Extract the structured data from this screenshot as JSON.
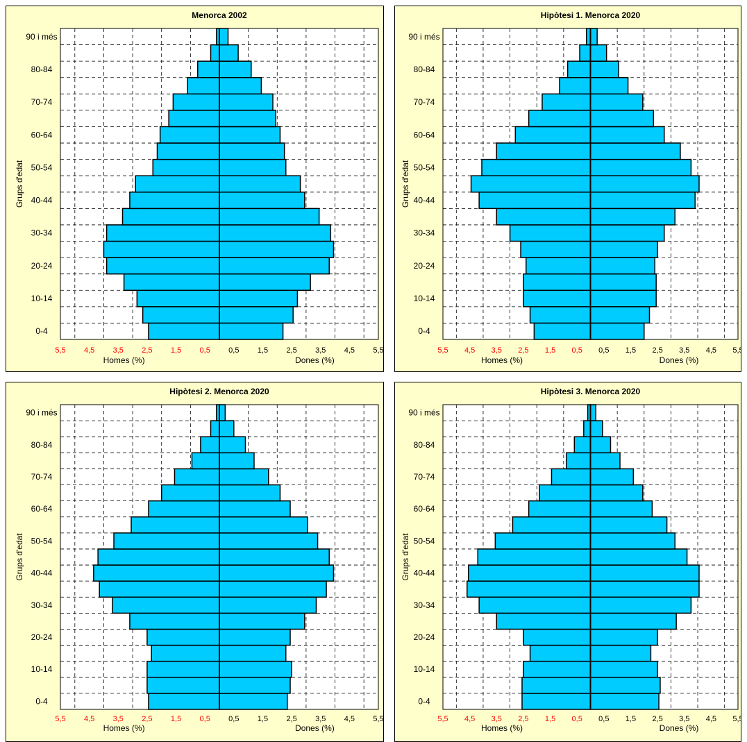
{
  "chart_data": [
    {
      "type": "bar",
      "title": "Menorca 2002",
      "categories": [
        "0-4",
        "5-9",
        "10-14",
        "15-19",
        "20-24",
        "25-29",
        "30-34",
        "35-39",
        "40-44",
        "45-49",
        "50-54",
        "55-59",
        "60-64",
        "65-69",
        "70-74",
        "75-79",
        "80-84",
        "85-89",
        "90 i més"
      ],
      "category_labels": [
        "0-4",
        "",
        "10-14",
        "",
        "20-24",
        "",
        "30-34",
        "",
        "40-44",
        "",
        "50-54",
        "",
        "60-64",
        "",
        "70-74",
        "",
        "80-84",
        "",
        "90 i més"
      ],
      "series": [
        {
          "name": "Homes (%)",
          "values": [
            2.45,
            2.65,
            2.85,
            3.3,
            3.9,
            4.0,
            3.9,
            3.35,
            3.1,
            2.9,
            2.3,
            2.15,
            2.05,
            1.75,
            1.6,
            1.1,
            0.75,
            0.3,
            0.1
          ]
        },
        {
          "name": "Dones (%)",
          "values": [
            2.2,
            2.55,
            2.7,
            3.15,
            3.8,
            3.95,
            3.85,
            3.45,
            2.95,
            2.8,
            2.3,
            2.25,
            2.1,
            1.95,
            1.85,
            1.45,
            1.1,
            0.65,
            0.3
          ]
        }
      ],
      "xlabel_left": "Homes (%)",
      "xlabel_right": "Dones (%)",
      "ylabel": "Grups d'edat",
      "ticks_left": [
        "5,5",
        "4,5",
        "3,5",
        "2,5",
        "1,5",
        "0,5"
      ],
      "ticks_right": [
        "0,5",
        "1,5",
        "2,5",
        "3,5",
        "4,5",
        "5,5"
      ],
      "xlim": [
        -5.5,
        5.5
      ],
      "grid": true,
      "bar_color": "#00ccff",
      "panel_color": "#ffffcc"
    },
    {
      "type": "bar",
      "title": "Hipòtesi 1. Menorca 2020",
      "categories": [
        "0-4",
        "5-9",
        "10-14",
        "15-19",
        "20-24",
        "25-29",
        "30-34",
        "35-39",
        "40-44",
        "45-49",
        "50-54",
        "55-59",
        "60-64",
        "65-69",
        "70-74",
        "75-79",
        "80-84",
        "85-89",
        "90 i més"
      ],
      "category_labels": [
        "0-4",
        "",
        "10-14",
        "",
        "20-24",
        "",
        "30-34",
        "",
        "40-44",
        "",
        "50-54",
        "",
        "60-64",
        "",
        "70-74",
        "",
        "80-84",
        "",
        "90 i més"
      ],
      "series": [
        {
          "name": "Homes (%)",
          "values": [
            2.1,
            2.25,
            2.5,
            2.5,
            2.4,
            2.6,
            3.0,
            3.5,
            4.15,
            4.45,
            4.05,
            3.5,
            2.8,
            2.3,
            1.8,
            1.15,
            0.85,
            0.4,
            0.15
          ]
        },
        {
          "name": "Dones (%)",
          "values": [
            2.0,
            2.2,
            2.45,
            2.45,
            2.4,
            2.5,
            2.75,
            3.15,
            3.9,
            4.05,
            3.75,
            3.35,
            2.75,
            2.35,
            1.95,
            1.4,
            1.05,
            0.6,
            0.25
          ]
        }
      ],
      "xlabel_left": "Homes (%)",
      "xlabel_right": "Dones (%)",
      "ylabel": "Grups d'edat",
      "ticks_left": [
        "5,5",
        "4,5",
        "3,5",
        "2,5",
        "1,5",
        "0,5"
      ],
      "ticks_right": [
        "0,5",
        "1,5",
        "2,5",
        "3,5",
        "4,5",
        "5,5"
      ],
      "xlim": [
        -5.5,
        5.5
      ],
      "grid": true,
      "bar_color": "#00ccff",
      "panel_color": "#ffffcc"
    },
    {
      "type": "bar",
      "title": "Hipòtesi 2. Menorca 2020",
      "categories": [
        "0-4",
        "5-9",
        "10-14",
        "15-19",
        "20-24",
        "25-29",
        "30-34",
        "35-39",
        "40-44",
        "45-49",
        "50-54",
        "55-59",
        "60-64",
        "65-69",
        "70-74",
        "75-79",
        "80-84",
        "85-89",
        "90 i més"
      ],
      "category_labels": [
        "0-4",
        "",
        "10-14",
        "",
        "20-24",
        "",
        "30-34",
        "",
        "40-44",
        "",
        "50-54",
        "",
        "60-64",
        "",
        "70-74",
        "",
        "80-84",
        "",
        "90 i més"
      ],
      "series": [
        {
          "name": "Homes (%)",
          "values": [
            2.45,
            2.5,
            2.5,
            2.35,
            2.5,
            3.1,
            3.7,
            4.15,
            4.35,
            4.2,
            3.65,
            3.05,
            2.45,
            2.0,
            1.55,
            0.95,
            0.65,
            0.3,
            0.1
          ]
        },
        {
          "name": "Dones (%)",
          "values": [
            2.35,
            2.45,
            2.5,
            2.3,
            2.45,
            2.95,
            3.35,
            3.7,
            3.95,
            3.8,
            3.4,
            3.05,
            2.45,
            2.1,
            1.7,
            1.2,
            0.9,
            0.5,
            0.2
          ]
        }
      ],
      "xlabel_left": "Homes (%)",
      "xlabel_right": "Dones (%)",
      "ylabel": "Grups d'edat",
      "ticks_left": [
        "5,5",
        "4,5",
        "3,5",
        "2,5",
        "1,5",
        "0,5"
      ],
      "ticks_right": [
        "0,5",
        "1,5",
        "2,5",
        "3,5",
        "4,5",
        "5,5"
      ],
      "xlim": [
        -5.5,
        5.5
      ],
      "grid": true,
      "bar_color": "#00ccff",
      "panel_color": "#ffffcc"
    },
    {
      "type": "bar",
      "title": "Hipòtesi 3. Menorca 2020",
      "categories": [
        "0-4",
        "5-9",
        "10-14",
        "15-19",
        "20-24",
        "25-29",
        "30-34",
        "35-39",
        "40-44",
        "45-49",
        "50-54",
        "55-59",
        "60-64",
        "65-69",
        "70-74",
        "75-79",
        "80-84",
        "85-89",
        "90 i més"
      ],
      "category_labels": [
        "0-4",
        "",
        "10-14",
        "",
        "20-24",
        "",
        "30-34",
        "",
        "40-44",
        "",
        "50-54",
        "",
        "60-64",
        "",
        "70-74",
        "",
        "80-84",
        "",
        "90 i més"
      ],
      "series": [
        {
          "name": "Homes (%)",
          "values": [
            2.55,
            2.55,
            2.5,
            2.25,
            2.5,
            3.5,
            4.15,
            4.6,
            4.55,
            4.2,
            3.55,
            2.9,
            2.3,
            1.9,
            1.45,
            0.9,
            0.6,
            0.25,
            0.1
          ]
        },
        {
          "name": "Dones (%)",
          "values": [
            2.55,
            2.6,
            2.5,
            2.25,
            2.5,
            3.2,
            3.75,
            4.05,
            4.05,
            3.6,
            3.15,
            2.85,
            2.3,
            1.95,
            1.6,
            1.1,
            0.75,
            0.45,
            0.2
          ]
        }
      ],
      "xlabel_left": "Homes (%)",
      "xlabel_right": "Dones (%)",
      "ylabel": "Grups d'edat",
      "ticks_left": [
        "5,5",
        "4,5",
        "3,5",
        "2,5",
        "1,5",
        "0,5"
      ],
      "ticks_right": [
        "0,5",
        "1,5",
        "2,5",
        "3,5",
        "4,5",
        "5,5"
      ],
      "xlim": [
        -5.5,
        5.5
      ],
      "grid": true,
      "bar_color": "#00ccff",
      "panel_color": "#ffffcc"
    }
  ]
}
